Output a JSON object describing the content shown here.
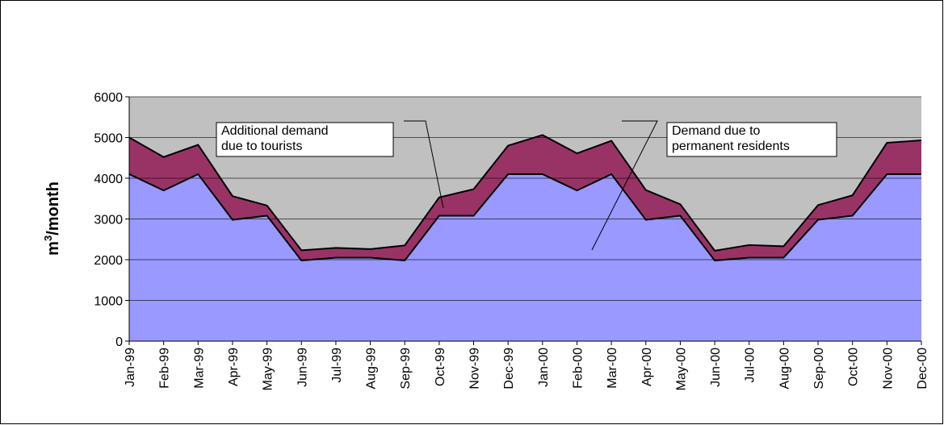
{
  "chart_data": {
    "type": "stacked_area",
    "y_label": {
      "base": "m",
      "sup": "3",
      "rest": "/month"
    },
    "categories": [
      "Jan-99",
      "Feb-99",
      "Mar-99",
      "Apr-99",
      "May-99",
      "Jun-99",
      "Jul-99",
      "Aug-99",
      "Sep-99",
      "Oct-99",
      "Nov-99",
      "Dec-99",
      "Jan-00",
      "Feb-00",
      "Mar-00",
      "Apr-00",
      "May-00",
      "Jun-00",
      "Jul-00",
      "Aug-00",
      "Sep-00",
      "Oct-00",
      "Nov-00",
      "Dec-00"
    ],
    "series": [
      {
        "color": "#9999ff",
        "values": [
          4100,
          3700,
          4100,
          2980,
          3080,
          1980,
          2050,
          2050,
          1980,
          3080,
          3080,
          4100,
          4100,
          3700,
          4100,
          2980,
          3080,
          1980,
          2050,
          2050,
          2980,
          3080,
          4100,
          4100
        ]
      },
      {
        "color": "#993366",
        "values": [
          900,
          820,
          720,
          580,
          250,
          250,
          240,
          210,
          370,
          450,
          650,
          700,
          960,
          910,
          820,
          730,
          280,
          240,
          310,
          280,
          360,
          500,
          770,
          830
        ]
      }
    ],
    "annotations": [
      {
        "lines": [
          "Additional demand",
          "due to tourists"
        ]
      },
      {
        "lines": [
          "Demand due to",
          "permanent residents"
        ]
      }
    ],
    "ylim": [
      0,
      6000
    ],
    "yticks": [
      0,
      1000,
      2000,
      3000,
      4000,
      5000,
      6000
    ],
    "grid": true,
    "background": "#c0c0c0"
  }
}
